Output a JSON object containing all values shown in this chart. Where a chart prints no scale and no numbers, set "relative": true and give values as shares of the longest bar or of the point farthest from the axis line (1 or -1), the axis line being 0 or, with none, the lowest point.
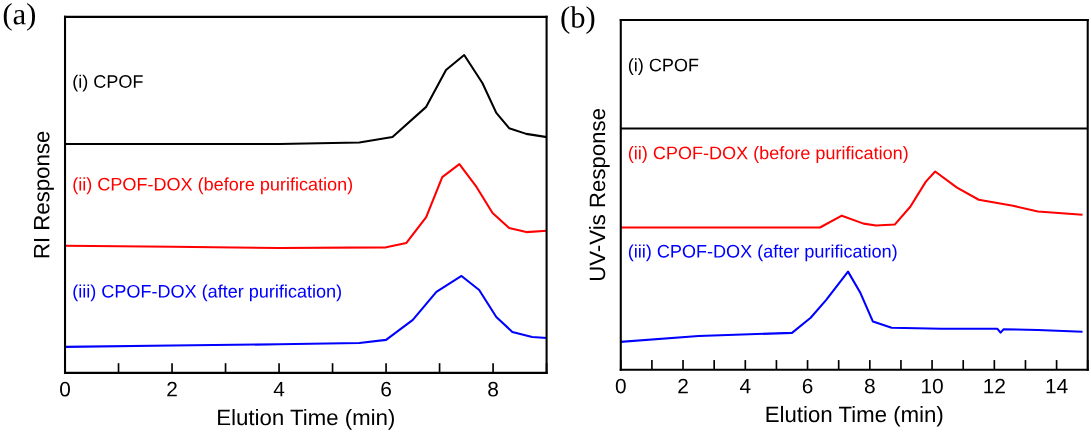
{
  "chart_data": [
    {
      "type": "line",
      "title": "(a)",
      "xlabel": "Elution Time (min)",
      "ylabel": "RI Response",
      "relative": true,
      "tick_labels": "x",
      "grid": false,
      "legend": false,
      "marker": "none",
      "line_style": "solid",
      "xlim": [
        0,
        9
      ],
      "xticks": [
        0,
        {
          "value": 1,
          "label": null
        },
        2,
        {
          "value": 3,
          "label": null
        },
        4,
        {
          "value": 5,
          "label": null
        },
        6,
        {
          "value": 7,
          "label": null
        },
        8,
        {
          "value": 9,
          "label": null
        }
      ],
      "series": [
        {
          "name": "(i) CPOF",
          "color": "#000000",
          "x": [
            0,
            2,
            4,
            5.5,
            6.12,
            6.75,
            7.12,
            7.46,
            7.8,
            8.06,
            8.3,
            8.62,
            9
          ],
          "values": [
            0.72,
            0.72,
            0.72,
            0.725,
            0.742,
            0.837,
            0.953,
            1.0,
            0.912,
            0.818,
            0.77,
            0.752,
            0.742
          ]
        },
        {
          "name": "(ii) CPOF-DOX (before purification)",
          "color": "#ff0000",
          "x": [
            0,
            2,
            4,
            6,
            6.38,
            6.75,
            7.05,
            7.37,
            7.69,
            7.99,
            8.3,
            8.62,
            9
          ],
          "values": [
            0.4,
            0.397,
            0.393,
            0.395,
            0.409,
            0.49,
            0.616,
            0.657,
            0.585,
            0.503,
            0.456,
            0.443,
            0.447
          ]
        },
        {
          "name": "(iii) CPOF-DOX (after purification)",
          "color": "#0000ff",
          "x": [
            0,
            2,
            4,
            5.5,
            6.0,
            6.5,
            6.94,
            7.41,
            7.74,
            8.06,
            8.36,
            8.73,
            9
          ],
          "values": [
            0.082,
            0.086,
            0.09,
            0.094,
            0.104,
            0.167,
            0.255,
            0.305,
            0.261,
            0.176,
            0.129,
            0.113,
            0.11
          ]
        }
      ]
    },
    {
      "type": "line",
      "title": "(b)",
      "xlabel": "Elution Time (min)",
      "ylabel": "UV-Vis Response",
      "relative": true,
      "tick_labels": "x",
      "grid": false,
      "legend": false,
      "marker": "none",
      "line_style": "solid",
      "xlim": [
        0,
        15
      ],
      "xticks": [
        0,
        {
          "value": 1,
          "label": null
        },
        2,
        {
          "value": 3,
          "label": null
        },
        4,
        {
          "value": 5,
          "label": null
        },
        6,
        {
          "value": 7,
          "label": null
        },
        8,
        {
          "value": 9,
          "label": null
        },
        10,
        {
          "value": 11,
          "label": null
        },
        12,
        {
          "value": 13,
          "label": null
        },
        14,
        {
          "value": 15,
          "label": null
        }
      ],
      "series": [
        {
          "name": "(i) CPOF",
          "color": "#000000",
          "x": [
            0,
            5,
            10,
            15
          ],
          "values": [
            1.0,
            1.0,
            1.0,
            1.0
          ]
        },
        {
          "name": "(ii) CPOF-DOX (before purification)",
          "color": "#ff0000",
          "x": [
            0,
            3,
            6.4,
            7.1,
            7.8,
            8.2,
            8.8,
            9.3,
            9.8,
            10.1,
            10.8,
            11.5,
            12.6,
            13.4,
            14.8
          ],
          "values": [
            0.59,
            0.59,
            0.59,
            0.639,
            0.606,
            0.598,
            0.602,
            0.676,
            0.78,
            0.822,
            0.755,
            0.705,
            0.68,
            0.656,
            0.643
          ]
        },
        {
          "name": "(iii) CPOF-DOX (after purification)",
          "color": "#0000ff",
          "x": [
            0,
            2.5,
            5.5,
            6.1,
            6.6,
            7.3,
            7.7,
            8.1,
            8.7,
            10.3,
            12.1,
            12.2,
            12.3,
            13.4,
            14.8
          ],
          "values": [
            0.116,
            0.14,
            0.153,
            0.216,
            0.29,
            0.407,
            0.318,
            0.2,
            0.174,
            0.17,
            0.17,
            0.154,
            0.168,
            0.165,
            0.158
          ]
        }
      ]
    }
  ]
}
